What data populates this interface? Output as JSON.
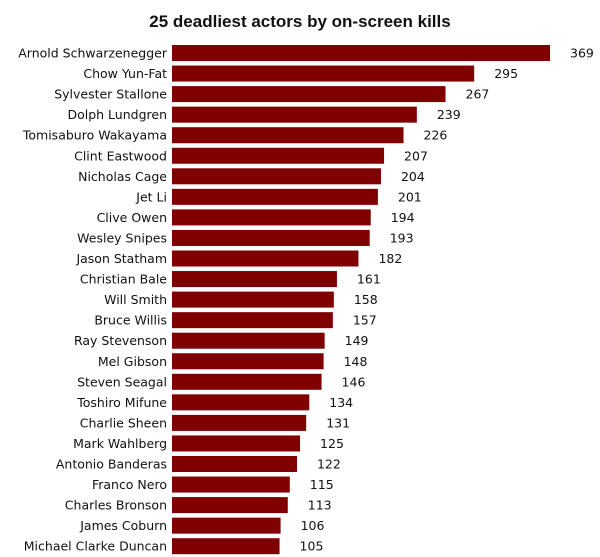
{
  "chart_data": {
    "type": "bar",
    "orientation": "horizontal",
    "title": "25 deadliest actors by on-screen kills",
    "xlabel": "",
    "ylabel": "",
    "grid": false,
    "legend": "none",
    "bar_color": "#800000",
    "categories": [
      "Arnold Schwarzenegger",
      "Chow Yun-Fat",
      "Sylvester Stallone",
      "Dolph Lundgren",
      "Tomisaburo Wakayama",
      "Clint Eastwood",
      "Nicholas Cage",
      "Jet Li",
      "Clive Owen",
      "Wesley Snipes",
      "Jason Statham",
      "Christian Bale",
      "Will Smith",
      "Bruce Willis",
      "Ray Stevenson",
      "Mel Gibson",
      "Steven Seagal",
      "Toshiro Mifune",
      "Charlie Sheen",
      "Mark Wahlberg",
      "Antonio Banderas",
      "Franco Nero",
      "Charles Bronson",
      "James Coburn",
      "Michael Clarke Duncan"
    ],
    "values": [
      369,
      295,
      267,
      239,
      226,
      207,
      204,
      201,
      194,
      193,
      182,
      161,
      158,
      157,
      149,
      148,
      146,
      134,
      131,
      125,
      122,
      115,
      113,
      106,
      105
    ],
    "xlim": [
      0,
      369
    ]
  }
}
